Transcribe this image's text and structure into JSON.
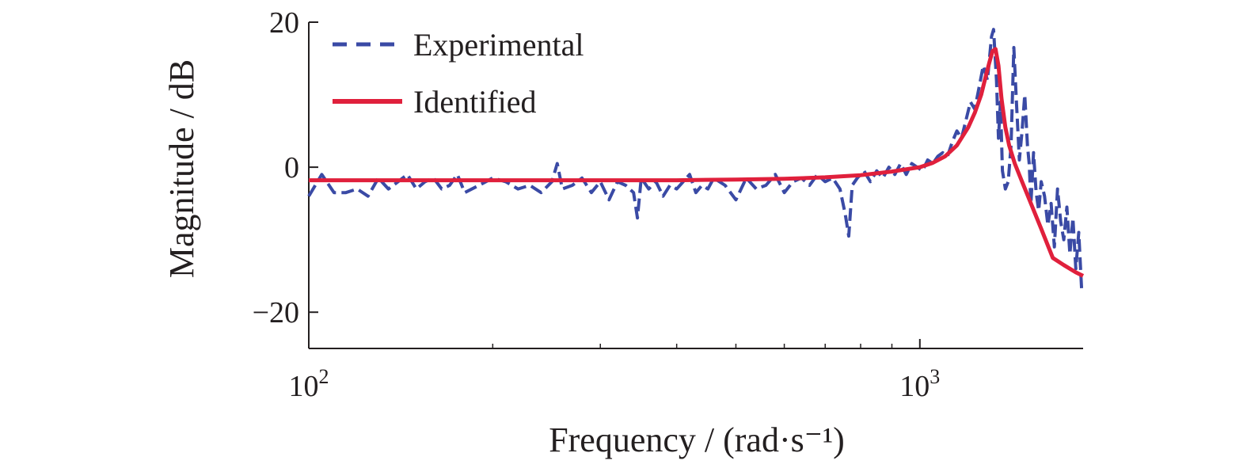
{
  "chart_data": {
    "type": "line",
    "title": "",
    "xlabel": "Frequency / (rad·s⁻¹)",
    "ylabel": "Magnitude / dB",
    "xscale": "log",
    "xlim": [
      100,
      1850
    ],
    "ylim": [
      -25,
      20
    ],
    "grid": false,
    "legend_position": "top-left",
    "x_ticks": [
      {
        "value": 100,
        "base": "10",
        "exponent": "2"
      },
      {
        "value": 1000,
        "base": "10",
        "exponent": "3"
      }
    ],
    "y_ticks": [
      {
        "value": 20,
        "label": "20"
      },
      {
        "value": 0,
        "label": "0"
      },
      {
        "value": -20,
        "label": "−20"
      }
    ],
    "series": [
      {
        "name": "Experimental",
        "style": "dashed",
        "color": "#3a4aa5",
        "x": [
          100,
          105,
          110,
          115,
          120,
          125,
          130,
          135,
          140,
          145,
          150,
          155,
          160,
          165,
          170,
          175,
          180,
          190,
          200,
          210,
          220,
          230,
          240,
          250,
          255,
          260,
          270,
          280,
          290,
          300,
          310,
          320,
          330,
          340,
          345,
          350,
          360,
          370,
          380,
          390,
          400,
          410,
          420,
          430,
          440,
          450,
          460,
          480,
          500,
          520,
          540,
          560,
          580,
          600,
          620,
          640,
          660,
          680,
          700,
          720,
          740,
          755,
          765,
          775,
          790,
          810,
          830,
          850,
          870,
          890,
          910,
          930,
          950,
          970,
          990,
          1010,
          1030,
          1050,
          1070,
          1090,
          1110,
          1130,
          1150,
          1170,
          1190,
          1210,
          1230,
          1250,
          1270,
          1290,
          1310,
          1320,
          1335,
          1345,
          1355,
          1365,
          1380,
          1395,
          1410,
          1425,
          1440,
          1455,
          1470,
          1485,
          1500,
          1510,
          1520,
          1535,
          1550,
          1565,
          1580,
          1600,
          1620,
          1640,
          1660,
          1680,
          1700,
          1720,
          1740,
          1760,
          1780,
          1800,
          1820,
          1840
        ],
        "y": [
          -4.0,
          -1.0,
          -3.5,
          -3.5,
          -3.0,
          -4.0,
          -1.5,
          -3.0,
          -2.0,
          -1.0,
          -3.0,
          -2.0,
          -1.5,
          -3.0,
          -2.5,
          -1.0,
          -3.5,
          -2.5,
          -1.5,
          -2.0,
          -3.0,
          -2.5,
          -3.5,
          -2.0,
          0.5,
          -3.0,
          -2.5,
          -1.5,
          -3.5,
          -2.0,
          -4.5,
          -2.0,
          -2.5,
          -3.5,
          -7.0,
          -1.5,
          -3.0,
          -2.0,
          -4.0,
          -2.5,
          -3.0,
          -2.0,
          -1.0,
          -3.5,
          -2.5,
          -3.0,
          -1.5,
          -2.5,
          -4.5,
          -1.5,
          -3.0,
          -2.5,
          -1.0,
          -3.5,
          -2.0,
          -1.5,
          -2.5,
          -1.0,
          -2.0,
          -1.5,
          -3.0,
          -6.5,
          -9.5,
          -2.5,
          -1.5,
          -0.5,
          -2.0,
          -0.5,
          -1.5,
          0.0,
          -1.0,
          0.5,
          -1.0,
          0.5,
          0.0,
          -0.5,
          1.0,
          0.5,
          1.5,
          2.0,
          1.5,
          3.5,
          5.0,
          4.0,
          6.5,
          9.0,
          8.0,
          11.0,
          14.0,
          12.0,
          18.0,
          19.0,
          12.0,
          4.0,
          9.0,
          -0.5,
          -3.0,
          -2.0,
          3.0,
          16.5,
          8.5,
          1.0,
          5.0,
          10.0,
          3.0,
          0.5,
          -5.0,
          2.0,
          -3.5,
          -6.0,
          -2.0,
          -4.0,
          -8.0,
          -5.0,
          -11.0,
          -3.0,
          -7.5,
          -10.0,
          -5.5,
          -12.0,
          -7.0,
          -14.0,
          -9.0,
          -17.0
        ]
      },
      {
        "name": "Identified",
        "style": "solid",
        "color": "#e0203c",
        "x": [
          100,
          200,
          300,
          400,
          500,
          600,
          700,
          800,
          900,
          1000,
          1050,
          1100,
          1150,
          1200,
          1230,
          1260,
          1280,
          1300,
          1315,
          1330,
          1345,
          1360,
          1380,
          1400,
          1430,
          1470,
          1520,
          1580,
          1650,
          1720,
          1800,
          1850
        ],
        "y": [
          -1.8,
          -1.8,
          -1.8,
          -1.8,
          -1.7,
          -1.6,
          -1.4,
          -1.1,
          -0.6,
          0.0,
          0.6,
          1.5,
          3.0,
          5.5,
          7.5,
          10.0,
          12.3,
          14.5,
          16.0,
          16.3,
          14.0,
          9.5,
          5.5,
          3.0,
          0.5,
          -2.0,
          -5.0,
          -8.5,
          -12.5,
          -13.5,
          -14.5,
          -15.0
        ]
      }
    ]
  }
}
